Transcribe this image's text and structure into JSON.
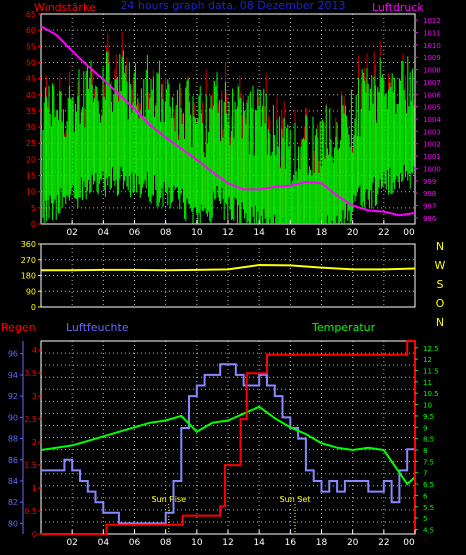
{
  "colors": {
    "background": "#000000",
    "plot_border": "#ffffff",
    "grid": "#ffffff",
    "wind_speed": "#00ff00",
    "wind_gust": "#cc0000",
    "pressure": "#ff00ff",
    "wind_dir": "#ffff00",
    "humidity": "#8888ff",
    "rain": "#ff0000",
    "temperature": "#00ff00",
    "time_axis": "#ffffff",
    "dir_letters": "#ffff00",
    "header_title": "#2222cc",
    "label_wind": "#ff0000",
    "label_pressure": "#ff00ff",
    "label_rain": "#ff0000",
    "label_humidity": "#6666ff",
    "label_temp": "#00ff00",
    "annotation": "#ffff00"
  },
  "chart_data": [
    {
      "type": "line",
      "title": "24 hours graph data, 08 Dezember 2013",
      "ylabel_left": "Windstärke",
      "ylabel_right": "Luftdruck",
      "xticks": [
        "02",
        "04",
        "06",
        "08",
        "10",
        "12",
        "14",
        "16",
        "18",
        "20",
        "22",
        "00"
      ],
      "ylim_left": [
        0,
        65
      ],
      "yticks_left": [
        "0",
        "5",
        "10",
        "15",
        "20",
        "25",
        "30",
        "35",
        "40",
        "45",
        "50",
        "55",
        "60",
        "65"
      ],
      "ylim_right": [
        995.5,
        1012.5
      ],
      "yticks_right": [
        "996",
        "997",
        "998",
        "999",
        "1000",
        "1001",
        "1002",
        "1003",
        "1004",
        "1005",
        "1006",
        "1007",
        "1008",
        "1009",
        "1010",
        "1011",
        "1012"
      ],
      "grid": true,
      "series": [
        {
          "name": "Luftdruck",
          "axis": "right",
          "x": [
            0,
            1,
            2,
            3,
            4,
            5,
            6,
            7,
            8,
            9,
            10,
            11,
            12,
            13,
            14,
            15,
            16,
            17,
            18,
            19,
            20,
            21,
            22,
            23,
            24
          ],
          "values": [
            1011.5,
            1010.8,
            1009.5,
            1008.3,
            1007.2,
            1006.0,
            1004.8,
            1003.5,
            1002.5,
            1001.6,
            1000.7,
            999.7,
            998.8,
            998.3,
            998.3,
            998.5,
            998.6,
            998.9,
            998.8,
            997.8,
            997.0,
            996.6,
            996.5,
            996.2,
            996.4
          ]
        }
      ]
    },
    {
      "type": "line",
      "xticks": [
        "02",
        "04",
        "06",
        "08",
        "10",
        "12",
        "14",
        "16",
        "18",
        "20",
        "22",
        "00"
      ],
      "ylim": [
        0,
        360
      ],
      "yticks": [
        "0",
        "90",
        "180",
        "270",
        "360"
      ],
      "direction_labels": [
        "N",
        "W",
        "S",
        "O",
        "N"
      ],
      "grid": true,
      "series": [
        {
          "name": "Windrichtung",
          "x": [
            0,
            2,
            4,
            6,
            8,
            10,
            12,
            14,
            16,
            18,
            20,
            22,
            24
          ],
          "values": [
            210,
            210,
            212,
            212,
            210,
            212,
            215,
            240,
            238,
            225,
            215,
            215,
            220
          ]
        }
      ]
    },
    {
      "type": "line",
      "label_rain": "Regen",
      "label_humidity": "Luftfeuchte",
      "label_temperature": "Temperatur",
      "xticks": [
        "02",
        "04",
        "06",
        "08",
        "10",
        "12",
        "14",
        "16",
        "18",
        "20",
        "22",
        "00"
      ],
      "ylim_rain": [
        0,
        4.2
      ],
      "yticks_rain": [
        "0",
        "0.5",
        "1",
        "1.5",
        "2",
        "2.5",
        "3",
        "3.5",
        "4"
      ],
      "ylim_humidity": [
        79,
        97.2
      ],
      "yticks_humidity": [
        "80",
        "82",
        "84",
        "86",
        "88",
        "90",
        "92",
        "94",
        "96"
      ],
      "ylim_temperature": [
        4.3,
        12.8
      ],
      "yticks_temperature": [
        "4.5",
        "5",
        "5.5",
        "6",
        "6.5",
        "7",
        "7.5",
        "8",
        "8.5",
        "9",
        "9.5",
        "10",
        "10.5",
        "11",
        "11.5",
        "12",
        "12.5"
      ],
      "grid": true,
      "annotations": [
        {
          "text": "Sun Rise",
          "x": 8.2
        },
        {
          "text": "Sun Set",
          "x": 16.3
        }
      ],
      "series": [
        {
          "name": "Regen",
          "axis": "rain",
          "step": true,
          "x": [
            0,
            4.2,
            8.3,
            9.1,
            11.5,
            11.8,
            12.8,
            13.2,
            14.5,
            17.8,
            22.5,
            23.5,
            24
          ],
          "values": [
            0,
            0.2,
            0.2,
            0.4,
            0.6,
            1.5,
            2.5,
            3.5,
            3.9,
            3.9,
            3.9,
            4.2,
            0
          ]
        },
        {
          "name": "Luftfeuchte",
          "axis": "humidity",
          "step": true,
          "x": [
            0,
            0.5,
            1.5,
            2.0,
            2.5,
            3.0,
            3.5,
            4.0,
            5.0,
            6.0,
            7.0,
            8.0,
            8.5,
            9.0,
            9.5,
            10.0,
            10.5,
            11.0,
            11.5,
            12.0,
            12.5,
            13.0,
            13.5,
            14.0,
            14.5,
            15.0,
            15.5,
            16.0,
            16.5,
            17.0,
            17.5,
            18.0,
            18.5,
            19.0,
            19.5,
            20.0,
            21.0,
            22.0,
            22.5,
            23.0,
            23.5,
            24.0
          ],
          "values": [
            85,
            85,
            86,
            85,
            84,
            83,
            82,
            81,
            80,
            80,
            80,
            81,
            84,
            89,
            92,
            93,
            94,
            94,
            95,
            95,
            94,
            93,
            93,
            94,
            93,
            92,
            90,
            89,
            88,
            85,
            84,
            83,
            84,
            83,
            84,
            84,
            83,
            84,
            82,
            85,
            87,
            85
          ]
        },
        {
          "name": "Temperatur",
          "axis": "temperature",
          "x": [
            0,
            1,
            2,
            3,
            4,
            5,
            6,
            7,
            8,
            9,
            10,
            11,
            12,
            13,
            14,
            15,
            16,
            17,
            18,
            19,
            20,
            21,
            22,
            23,
            23.5,
            24
          ],
          "values": [
            8.0,
            8.1,
            8.2,
            8.4,
            8.6,
            8.8,
            9.0,
            9.2,
            9.3,
            9.5,
            8.8,
            9.2,
            9.3,
            9.6,
            9.9,
            9.4,
            9.0,
            8.7,
            8.3,
            8.1,
            8.0,
            8.1,
            8.0,
            7.0,
            6.5,
            6.8
          ]
        }
      ]
    }
  ]
}
